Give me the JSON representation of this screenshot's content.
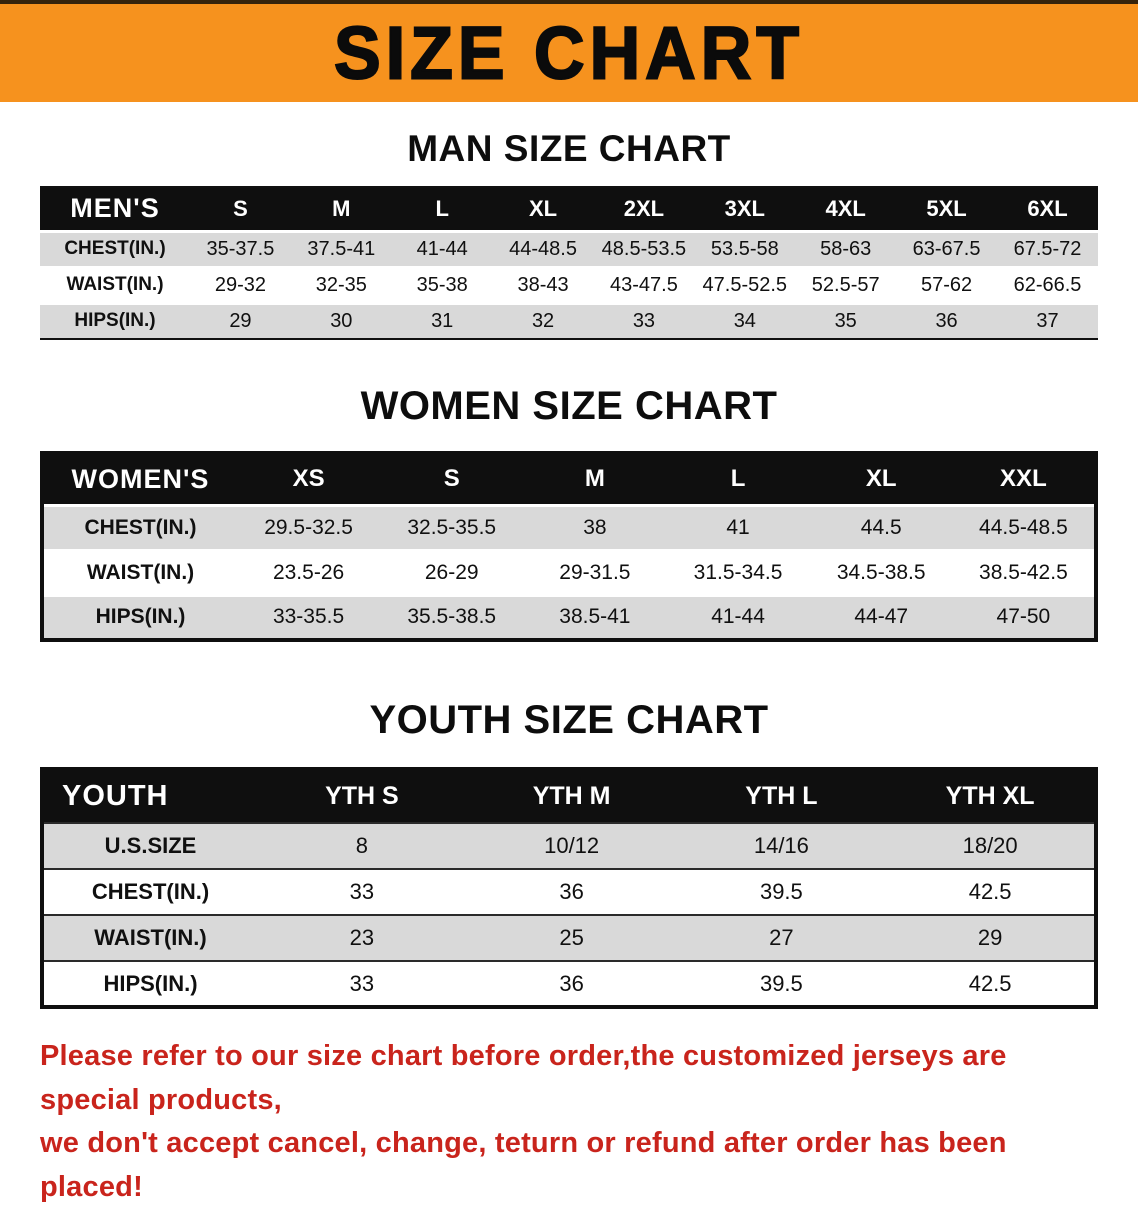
{
  "banner": {
    "title": "SIZE CHART",
    "bg_color": "#f6921e",
    "text_color": "#0b0b0b"
  },
  "sections": [
    {
      "heading": "MAN SIZE CHART",
      "table": {
        "header": [
          "MEN'S",
          "S",
          "M",
          "L",
          "XL",
          "2XL",
          "3XL",
          "4XL",
          "5XL",
          "6XL"
        ],
        "rows": [
          [
            "CHEST(IN.)",
            "35-37.5",
            "37.5-41",
            "41-44",
            "44-48.5",
            "48.5-53.5",
            "53.5-58",
            "58-63",
            "63-67.5",
            "67.5-72"
          ],
          [
            "WAIST(IN.)",
            "29-32",
            "32-35",
            "35-38",
            "38-43",
            "43-47.5",
            "47.5-52.5",
            "52.5-57",
            "57-62",
            "62-66.5"
          ],
          [
            "HIPS(IN.)",
            "29",
            "30",
            "31",
            "32",
            "33",
            "34",
            "35",
            "36",
            "37"
          ]
        ]
      }
    },
    {
      "heading": "WOMEN SIZE CHART",
      "table": {
        "header": [
          "WOMEN'S",
          "XS",
          "S",
          "M",
          "L",
          "XL",
          "XXL"
        ],
        "rows": [
          [
            "CHEST(IN.)",
            "29.5-32.5",
            "32.5-35.5",
            "38",
            "41",
            "44.5",
            "44.5-48.5"
          ],
          [
            "WAIST(IN.)",
            "23.5-26",
            "26-29",
            "29-31.5",
            "31.5-34.5",
            "34.5-38.5",
            "38.5-42.5"
          ],
          [
            "HIPS(IN.)",
            "33-35.5",
            "35.5-38.5",
            "38.5-41",
            "41-44",
            "44-47",
            "47-50"
          ]
        ]
      }
    },
    {
      "heading": "YOUTH SIZE CHART",
      "table": {
        "header": [
          "YOUTH",
          "YTH S",
          "YTH M",
          "YTH L",
          "YTH XL"
        ],
        "rows": [
          [
            "U.S.SIZE",
            "8",
            "10/12",
            "14/16",
            "18/20"
          ],
          [
            "CHEST(IN.)",
            "33",
            "36",
            "39.5",
            "42.5"
          ],
          [
            "WAIST(IN.)",
            "23",
            "25",
            "27",
            "29"
          ],
          [
            "HIPS(IN.)",
            "33",
            "36",
            "39.5",
            "42.5"
          ]
        ]
      }
    }
  ],
  "footer": {
    "line1": "Please refer to our size chart before order,the customized jerseys are special products,",
    "line2": "we don't accept cancel, change, teturn or refund after order has been placed!",
    "text_color": "#c9241c"
  },
  "colors": {
    "header_row_bg": "#0f0f0f",
    "stripe_row_bg": "#d9d9d9"
  },
  "chart_data": [
    {
      "type": "table",
      "title": "MAN SIZE CHART",
      "columns": [
        "MEN'S",
        "S",
        "M",
        "L",
        "XL",
        "2XL",
        "3XL",
        "4XL",
        "5XL",
        "6XL"
      ],
      "rows": [
        [
          "CHEST(IN.)",
          "35-37.5",
          "37.5-41",
          "41-44",
          "44-48.5",
          "48.5-53.5",
          "53.5-58",
          "58-63",
          "63-67.5",
          "67.5-72"
        ],
        [
          "WAIST(IN.)",
          "29-32",
          "32-35",
          "35-38",
          "38-43",
          "43-47.5",
          "47.5-52.5",
          "52.5-57",
          "57-62",
          "62-66.5"
        ],
        [
          "HIPS(IN.)",
          "29",
          "30",
          "31",
          "32",
          "33",
          "34",
          "35",
          "36",
          "37"
        ]
      ]
    },
    {
      "type": "table",
      "title": "WOMEN SIZE CHART",
      "columns": [
        "WOMEN'S",
        "XS",
        "S",
        "M",
        "L",
        "XL",
        "XXL"
      ],
      "rows": [
        [
          "CHEST(IN.)",
          "29.5-32.5",
          "32.5-35.5",
          "38",
          "41",
          "44.5",
          "44.5-48.5"
        ],
        [
          "WAIST(IN.)",
          "23.5-26",
          "26-29",
          "29-31.5",
          "31.5-34.5",
          "34.5-38.5",
          "38.5-42.5"
        ],
        [
          "HIPS(IN.)",
          "33-35.5",
          "35.5-38.5",
          "38.5-41",
          "41-44",
          "44-47",
          "47-50"
        ]
      ]
    },
    {
      "type": "table",
      "title": "YOUTH SIZE CHART",
      "columns": [
        "YOUTH",
        "YTH S",
        "YTH M",
        "YTH L",
        "YTH XL"
      ],
      "rows": [
        [
          "U.S.SIZE",
          "8",
          "10/12",
          "14/16",
          "18/20"
        ],
        [
          "CHEST(IN.)",
          "33",
          "36",
          "39.5",
          "42.5"
        ],
        [
          "WAIST(IN.)",
          "23",
          "25",
          "27",
          "29"
        ],
        [
          "HIPS(IN.)",
          "33",
          "36",
          "39.5",
          "42.5"
        ]
      ]
    }
  ]
}
